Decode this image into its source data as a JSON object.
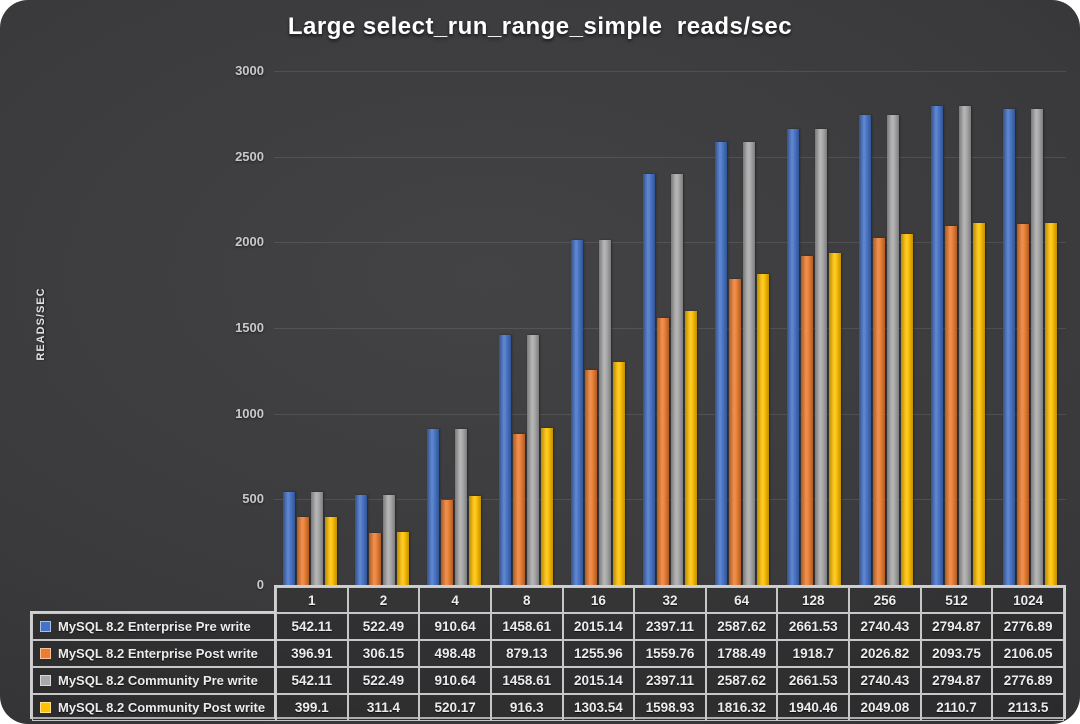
{
  "title": "Large select_run_range_simple  reads/sec",
  "y_axis": {
    "label": "READS/SEC"
  },
  "chart_data": {
    "type": "bar",
    "title": "Large select_run_range_simple  reads/sec",
    "xlabel": "",
    "ylabel": "READS/SEC",
    "ylim": [
      0,
      3000
    ],
    "yticks": [
      0,
      500,
      1000,
      1500,
      2000,
      2500,
      3000
    ],
    "grid": true,
    "legend_position": "bottom-left-table",
    "categories": [
      "1",
      "2",
      "4",
      "8",
      "16",
      "32",
      "64",
      "128",
      "256",
      "512",
      "1024"
    ],
    "series": [
      {
        "name": "MySQL 8.2 Enterprise Pre write",
        "color": "#4472C7",
        "values": [
          542.11,
          522.49,
          910.64,
          1458.61,
          2015.14,
          2397.11,
          2587.62,
          2661.53,
          2740.43,
          2794.87,
          2776.89
        ]
      },
      {
        "name": "MySQL 8.2 Enterprise Post write",
        "color": "#ED7D31",
        "values": [
          396.91,
          306.15,
          498.48,
          879.13,
          1255.96,
          1559.76,
          1788.49,
          1918.7,
          2026.82,
          2093.75,
          2106.05
        ]
      },
      {
        "name": "MySQL 8.2 Community Pre write",
        "color": "#A8A8A8",
        "values": [
          542.11,
          522.49,
          910.64,
          1458.61,
          2015.14,
          2397.11,
          2587.62,
          2661.53,
          2740.43,
          2794.87,
          2776.89
        ]
      },
      {
        "name": "MySQL 8.2 Community Post write",
        "color": "#FFC000",
        "values": [
          399.1,
          311.4,
          520.17,
          916.3,
          1303.54,
          1598.93,
          1816.32,
          1940.46,
          2049.08,
          2110.7,
          2113.5
        ]
      }
    ]
  }
}
